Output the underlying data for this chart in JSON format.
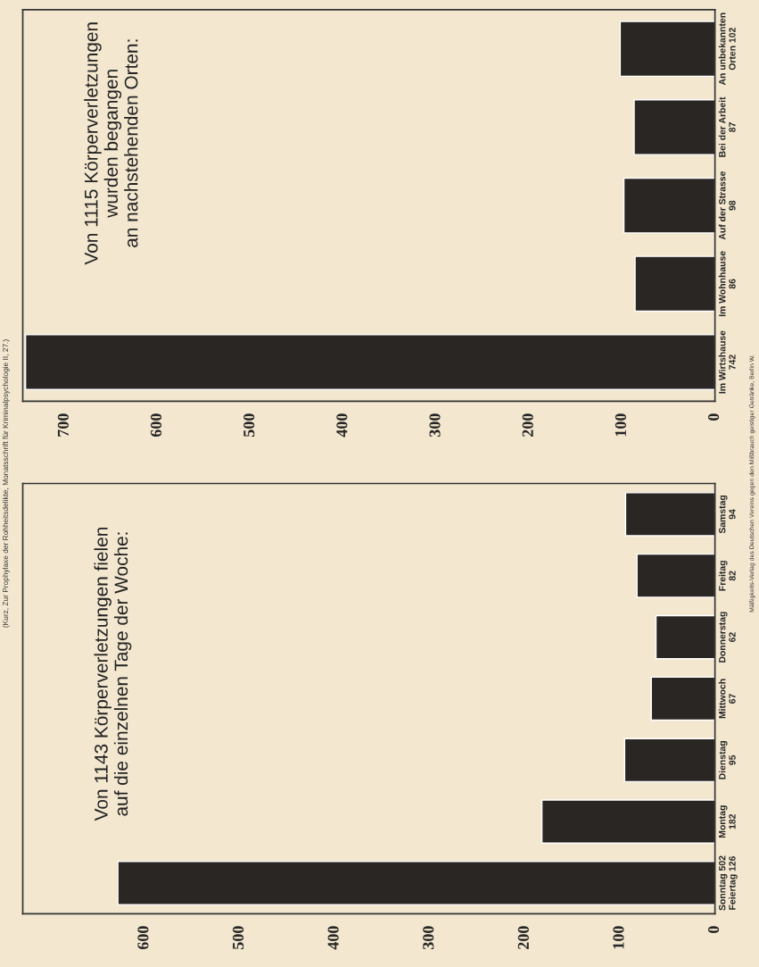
{
  "chart_data": [
    {
      "type": "bar",
      "orientation": "horizontal",
      "title": "Von 1115 Körperverletzungen\nwurden begangen\nan nachstehenden Orten:",
      "categories": [
        "An unbekannten\nOrten 102",
        "Bei der Arbeit\n87",
        "Auf der Strasse\n98",
        "Im Wohnhause\n86",
        "Im Wirtshause\n742"
      ],
      "values": [
        102,
        87,
        98,
        86,
        742
      ],
      "color": "#2a2624",
      "xlim": [
        745,
        0
      ],
      "xticks": [
        700,
        600,
        500,
        400,
        300,
        200,
        100,
        0
      ],
      "annotations": [
        "(Kurz, Zur Prophylaxe der Rohheitsdelikte, Monatsschrift für Kriminalpsychologie II, 27.)"
      ]
    },
    {
      "type": "bar",
      "orientation": "horizontal",
      "title": "Von 1143 Körperverletzungen fielen\nauf die einzelnen Tage der Woche:",
      "categories": [
        "Samstag\n94",
        "Freitag\n82",
        "Donnerstag\n62",
        "Mittwoch\n67",
        "Dienstag\n95",
        "Montag\n182",
        "Sonntag 502\nFeiertag 126"
      ],
      "values": [
        94,
        82,
        62,
        67,
        95,
        182,
        628
      ],
      "color": "#2a2624",
      "xlim": [
        728,
        0
      ],
      "xticks": [
        600,
        500,
        400,
        300,
        200,
        100,
        0
      ],
      "annotations": [
        "Mäßigkeits-Verlag des Deutschen Vereins gegen den Mißbrauch geistiger Getränke, Berlin W."
      ]
    }
  ]
}
